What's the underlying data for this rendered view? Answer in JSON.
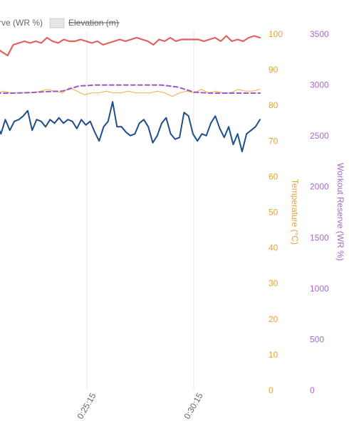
{
  "chart_data": {
    "type": "line",
    "legend": {
      "placement": "top-left",
      "items": [
        {
          "label": "rve (WR %)",
          "swatch_color": null,
          "struck": false
        },
        {
          "label": "Elevation (m)",
          "swatch_color": "#e6e6e6",
          "struck": true
        }
      ]
    },
    "x_ticks": [
      "0:25:15",
      "0:30:15"
    ],
    "y_axes": [
      {
        "id": "temperature",
        "title": "Temperature (°C)",
        "color": "#e6a23c",
        "ylim": [
          0,
          100
        ],
        "ticks": [
          0,
          10,
          20,
          30,
          40,
          50,
          60,
          70,
          80,
          90,
          100
        ]
      },
      {
        "id": "workout_reserve",
        "title": "Workout Reserve (WR %)",
        "color": "#a66bc4",
        "ylim": [
          0,
          3500
        ],
        "ticks": [
          0,
          500,
          1000,
          1500,
          2000,
          2500,
          3000,
          3500
        ]
      }
    ],
    "grid": {
      "vertical": true,
      "horizontal": false
    },
    "series": [
      {
        "style": "solid",
        "color": "#e0605a",
        "axis": "temperature",
        "values": [
          96,
          95,
          94,
          97,
          97.5,
          98,
          97.5,
          98,
          97.5,
          99,
          98,
          97.5,
          98.5,
          98,
          98,
          98.5,
          98,
          97.5,
          98,
          97,
          97.5,
          98,
          98.5,
          98,
          98.5,
          99,
          98.5,
          98,
          97,
          98.5,
          98,
          99,
          98,
          98.5,
          98.5,
          98.5,
          98.5,
          98,
          98.5,
          99,
          98,
          99.5,
          98,
          98.5,
          98,
          99,
          99.5,
          99
        ]
      },
      {
        "style": "solid",
        "color": "#f0b860",
        "axis": "temperature",
        "values": [
          83.5,
          84,
          83.5,
          83.5,
          83.5,
          83.5,
          84,
          84.5,
          84,
          83.5,
          85,
          84,
          83,
          83.5,
          83.5,
          84,
          83.5,
          83.5,
          84,
          83.5,
          83.5,
          83.5,
          84,
          83.5,
          82.5,
          83.5,
          84,
          83.5,
          84.5,
          83.5,
          84,
          83.5,
          83.5,
          84.5,
          84,
          84,
          84.5
        ]
      },
      {
        "style": "dashed",
        "color": "#9b59c6",
        "axis": "workout_reserve",
        "values": [
          2920,
          2920,
          2925,
          2935,
          2940,
          2990,
          3000,
          3000,
          3000,
          3000,
          3000,
          2980,
          2930,
          2920,
          2920,
          2920,
          2920
        ]
      },
      {
        "style": "solid",
        "color": "#1f4e89",
        "axis": "temperature",
        "values": [
          75,
          72,
          76,
          73,
          75.5,
          76,
          77,
          78.5,
          73,
          76,
          75.5,
          74,
          76,
          75,
          76.5,
          75,
          76,
          75.5,
          73.5,
          76,
          74.5,
          75.5,
          72.5,
          70,
          74,
          75.5,
          81,
          74,
          74,
          72.5,
          71.5,
          72,
          75,
          76,
          74,
          69.5,
          71.5,
          75,
          76.5,
          72,
          70.5,
          71,
          78,
          77,
          72,
          70,
          72,
          71.5,
          75,
          77,
          73.5,
          71,
          74,
          69,
          72,
          67,
          72,
          73,
          74,
          76
        ]
      }
    ]
  }
}
